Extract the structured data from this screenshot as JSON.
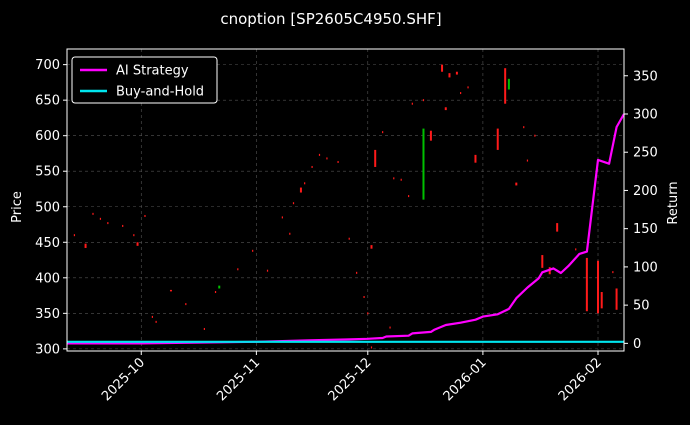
{
  "chart_data": {
    "type": "line",
    "title": "cnoption [SP2605C4950.SHF]",
    "xlabel": "",
    "ylabel": "Price",
    "y2label": "Return",
    "x_ticks": [
      "2025-10",
      "2025-11",
      "2025-12",
      "2026-01",
      "2026-02"
    ],
    "xlim": [
      "2025-09-11",
      "2026-02-08"
    ],
    "y_ticks": [
      300,
      350,
      400,
      450,
      500,
      550,
      600,
      650,
      700
    ],
    "ylim": [
      297,
      722
    ],
    "y2_ticks": [
      0,
      50,
      100,
      150,
      200,
      250,
      300,
      350
    ],
    "y2lim": [
      -10,
      385
    ],
    "grid": true,
    "legend_position": "top-left",
    "colors": {
      "background": "#000000",
      "strategy": "#ff00ff",
      "buy_hold": "#00e5ee",
      "up_candle": "#00c000",
      "down_candle": "#ff1a1a",
      "grid": "#555555"
    },
    "series": [
      {
        "name": "AI Strategy",
        "axis": "right",
        "x": [
          "2025-09-11",
          "2025-10-01",
          "2025-10-15",
          "2025-11-01",
          "2025-11-15",
          "2025-11-25",
          "2025-12-01",
          "2025-12-05",
          "2025-12-06",
          "2025-12-12",
          "2025-12-13",
          "2025-12-18",
          "2025-12-19",
          "2025-12-22",
          "2025-12-26",
          "2025-12-29",
          "2025-12-30",
          "2026-01-01",
          "2026-01-05",
          "2026-01-08",
          "2026-01-10",
          "2026-01-13",
          "2026-01-16",
          "2026-01-17",
          "2026-01-20",
          "2026-01-22",
          "2026-01-24",
          "2026-01-27",
          "2026-01-29",
          "2026-02-01",
          "2026-02-04",
          "2026-02-06",
          "2026-02-08"
        ],
        "values": [
          0,
          0,
          1,
          2,
          4,
          5,
          6,
          7,
          9,
          10,
          13,
          15,
          18,
          24,
          27,
          30,
          31,
          35,
          38,
          45,
          59,
          73,
          85,
          93,
          98,
          92,
          101,
          117,
          120,
          240,
          235,
          283,
          300
        ]
      },
      {
        "name": "Buy-and-Hold",
        "axis": "right",
        "x": [
          "2025-09-11",
          "2025-10-15",
          "2025-11-15",
          "2025-12-15",
          "2026-01-15",
          "2026-02-08"
        ],
        "values": [
          2,
          2,
          2,
          2,
          2,
          2
        ]
      }
    ],
    "candles": [
      {
        "x": "2025-09-16",
        "open": 448,
        "close": 442
      },
      {
        "x": "2025-09-30",
        "open": 450,
        "close": 445
      },
      {
        "x": "2025-10-09",
        "open": 383,
        "close": 382
      },
      {
        "x": "2025-10-22",
        "open": 385,
        "close": 389
      },
      {
        "x": "2025-11-13",
        "open": 527,
        "close": 520
      },
      {
        "x": "2025-12-02",
        "open": 446,
        "close": 441
      },
      {
        "x": "2025-12-03",
        "open": 580,
        "close": 556
      },
      {
        "x": "2025-12-16",
        "open": 510,
        "close": 610
      },
      {
        "x": "2025-12-18",
        "open": 607,
        "close": 593
      },
      {
        "x": "2025-12-21",
        "open": 700,
        "close": 690
      },
      {
        "x": "2025-12-22",
        "open": 640,
        "close": 636
      },
      {
        "x": "2025-12-23",
        "open": 688,
        "close": 682
      },
      {
        "x": "2025-12-25",
        "open": 690,
        "close": 686
      },
      {
        "x": "2025-12-30",
        "open": 573,
        "close": 562
      },
      {
        "x": "2026-01-05",
        "open": 610,
        "close": 580
      },
      {
        "x": "2026-01-07",
        "open": 695,
        "close": 645
      },
      {
        "x": "2026-01-08",
        "open": 665,
        "close": 680
      },
      {
        "x": "2026-01-10",
        "open": 534,
        "close": 530
      },
      {
        "x": "2026-01-17",
        "open": 432,
        "close": 414
      },
      {
        "x": "2026-01-19",
        "open": 415,
        "close": 405
      },
      {
        "x": "2026-01-21",
        "open": 477,
        "close": 465
      },
      {
        "x": "2026-01-29",
        "open": 428,
        "close": 353
      },
      {
        "x": "2026-02-01",
        "open": 424,
        "close": 350
      },
      {
        "x": "2026-02-02",
        "open": 380,
        "close": 357
      },
      {
        "x": "2026-02-06",
        "open": 385,
        "close": 355
      }
    ],
    "wicks": [
      {
        "x": "2025-09-13",
        "y": 460
      },
      {
        "x": "2025-09-18",
        "y": 490
      },
      {
        "x": "2025-09-20",
        "y": 483
      },
      {
        "x": "2025-09-22",
        "y": 477
      },
      {
        "x": "2025-09-26",
        "y": 473
      },
      {
        "x": "2025-09-29",
        "y": 460
      },
      {
        "x": "2025-10-02",
        "y": 487
      },
      {
        "x": "2025-10-04",
        "y": 345
      },
      {
        "x": "2025-10-05",
        "y": 338
      },
      {
        "x": "2025-10-13",
        "y": 363
      },
      {
        "x": "2025-10-18",
        "y": 328
      },
      {
        "x": "2025-10-21",
        "y": 380
      },
      {
        "x": "2025-10-27",
        "y": 412
      },
      {
        "x": "2025-10-31",
        "y": 438
      },
      {
        "x": "2025-11-04",
        "y": 410
      },
      {
        "x": "2025-11-08",
        "y": 485
      },
      {
        "x": "2025-11-10",
        "y": 462
      },
      {
        "x": "2025-11-11",
        "y": 505
      },
      {
        "x": "2025-11-14",
        "y": 533
      },
      {
        "x": "2025-11-16",
        "y": 556
      },
      {
        "x": "2025-11-18",
        "y": 573
      },
      {
        "x": "2025-11-20",
        "y": 568
      },
      {
        "x": "2025-11-23",
        "y": 563
      },
      {
        "x": "2025-11-26",
        "y": 455
      },
      {
        "x": "2025-11-28",
        "y": 407
      },
      {
        "x": "2025-11-30",
        "y": 373
      },
      {
        "x": "2025-12-01",
        "y": 350
      },
      {
        "x": "2025-12-02",
        "y": 302
      },
      {
        "x": "2025-12-05",
        "y": 605
      },
      {
        "x": "2025-12-07",
        "y": 330
      },
      {
        "x": "2025-12-08",
        "y": 540
      },
      {
        "x": "2025-12-10",
        "y": 538
      },
      {
        "x": "2025-12-12",
        "y": 515
      },
      {
        "x": "2025-12-13",
        "y": 645
      },
      {
        "x": "2025-12-16",
        "y": 650
      },
      {
        "x": "2025-12-26",
        "y": 660
      },
      {
        "x": "2025-12-28",
        "y": 668
      },
      {
        "x": "2026-01-12",
        "y": 612
      },
      {
        "x": "2026-01-13",
        "y": 565
      },
      {
        "x": "2026-01-15",
        "y": 600
      },
      {
        "x": "2026-01-26",
        "y": 440
      },
      {
        "x": "2026-02-05",
        "y": 408
      }
    ]
  },
  "legend": {
    "items": [
      {
        "label": "AI Strategy",
        "color": "#ff00ff"
      },
      {
        "label": "Buy-and-Hold",
        "color": "#00e5ee"
      }
    ]
  }
}
